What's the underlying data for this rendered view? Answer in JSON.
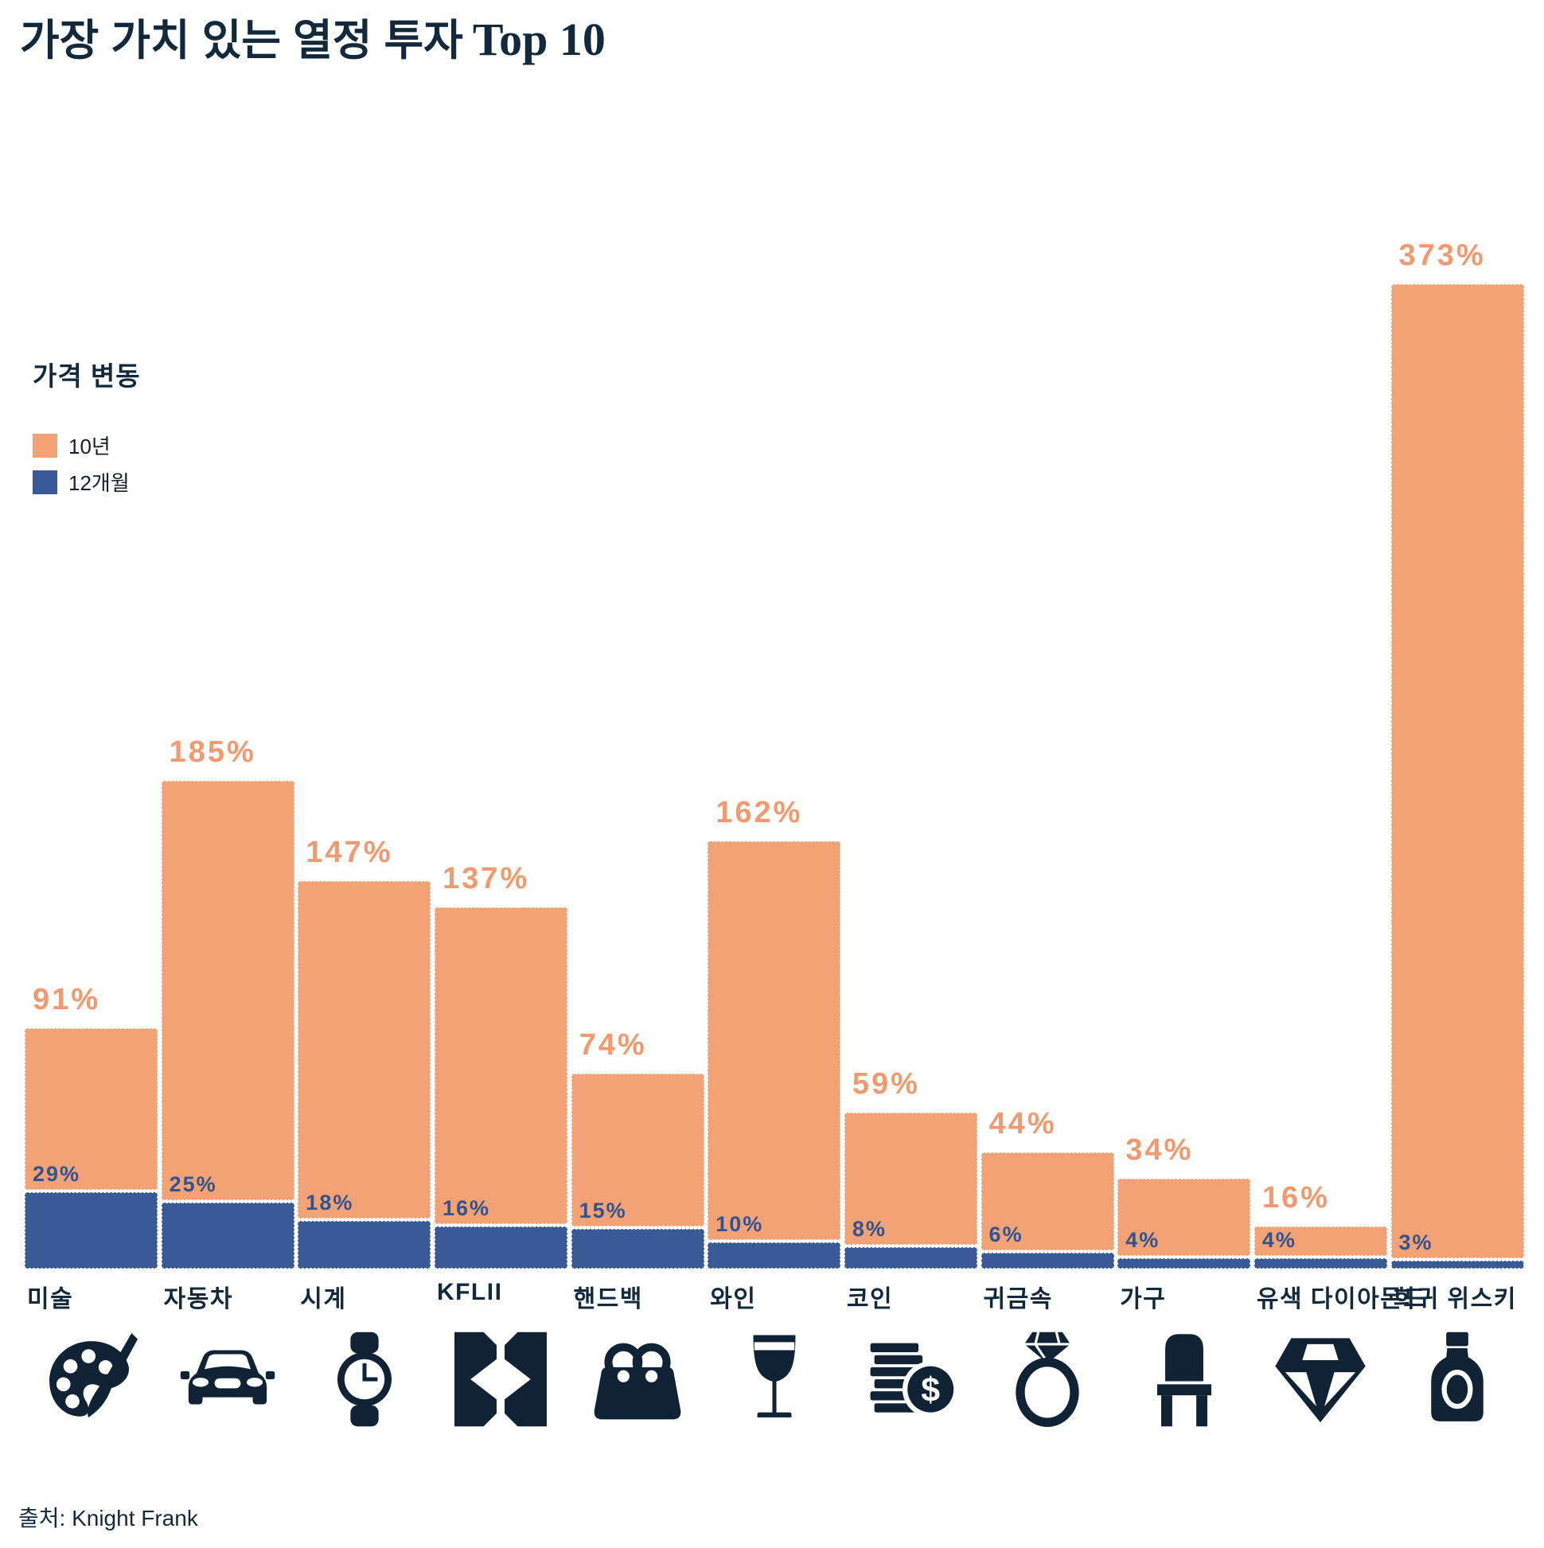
{
  "title": {
    "korean": "가장 가치 있는 열정 투자",
    "latin": "Top 10"
  },
  "legend": {
    "title": "가격 변동",
    "items": [
      {
        "label": "10년",
        "color": "#F3A276"
      },
      {
        "label": "12개월",
        "color": "#395A96"
      }
    ]
  },
  "source": "출처: Knight Frank",
  "colors": {
    "bar_10yr": "#F3A276",
    "bar_12mo": "#395A96",
    "label_10yr": "#F19A6F",
    "label_12mo": "#31538F",
    "text_navy": "#12293C",
    "background": "#FFFFFF"
  },
  "chart_data": {
    "type": "bar",
    "title": "가장 가치 있는 열정 투자 Top 10",
    "categories": [
      "미술",
      "자동차",
      "시계",
      "KFLII",
      "핸드백",
      "와인",
      "코인",
      "귀금속",
      "가구",
      "유색 다이아몬드",
      "희귀 위스키"
    ],
    "series": [
      {
        "name": "10년",
        "unit": "%",
        "color": "#F3A276",
        "values": [
          91,
          185,
          147,
          137,
          74,
          162,
          59,
          44,
          34,
          16,
          373
        ]
      },
      {
        "name": "12개월",
        "unit": "%",
        "color": "#395A96",
        "values": [
          29,
          25,
          18,
          16,
          15,
          10,
          8,
          6,
          4,
          4,
          3
        ]
      }
    ],
    "value_label_format": "{value}%",
    "icons": [
      "palette",
      "car",
      "watch",
      "kflii-logo",
      "handbag",
      "wine-glass",
      "coins",
      "ring",
      "chair",
      "diamond",
      "whisky-bottle"
    ],
    "ylim": [
      0,
      400
    ],
    "grid": false,
    "axes_shown": false,
    "legend_position": "upper-left",
    "xlabel": "",
    "ylabel": "가격 변동"
  }
}
